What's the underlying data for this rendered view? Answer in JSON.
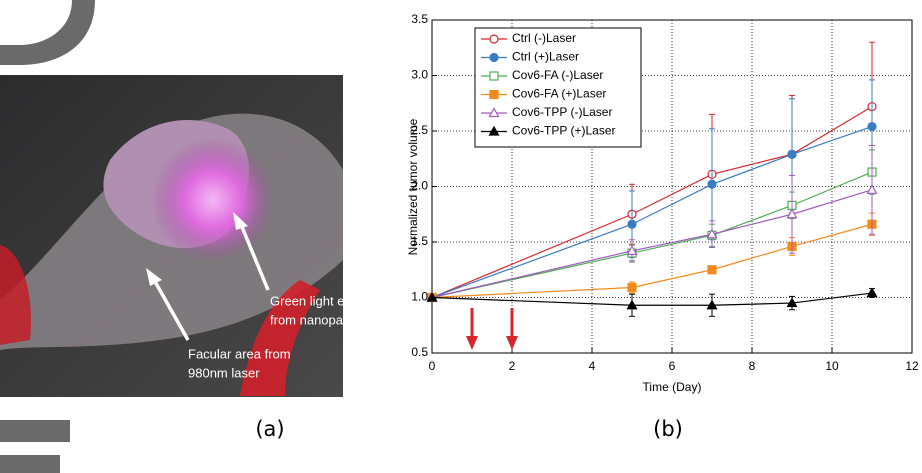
{
  "panel_labels": [
    "(a)",
    "(b)"
  ],
  "photo": {
    "annotations": [
      [
        "Green light emitted",
        "from nanoparticles"
      ],
      [
        "Facular area from",
        "980nm laser"
      ]
    ]
  },
  "chart_data": {
    "type": "line",
    "x_label": "Time (Day)",
    "y_label": "Normalized tumor volume",
    "x": [
      0,
      5,
      7,
      9,
      11
    ],
    "series": [
      {
        "name": "Ctrl (-)Laser",
        "color": "#d9262b",
        "marker": "circle",
        "filled": false,
        "values": [
          1.0,
          1.75,
          2.11,
          2.29,
          2.72
        ],
        "errors": [
          0,
          0.27,
          0.54,
          0.53,
          0.58
        ]
      },
      {
        "name": "Ctrl (+)Laser",
        "color": "#3a7cc4",
        "marker": "circle",
        "filled": true,
        "values": [
          1.0,
          1.66,
          2.02,
          2.29,
          2.54
        ],
        "errors": [
          0,
          0.3,
          0.5,
          0.5,
          0.42
        ]
      },
      {
        "name": "Cov6-FA (-)Laser",
        "color": "#4caf50",
        "marker": "square",
        "filled": false,
        "values": [
          1.0,
          1.4,
          1.56,
          1.83,
          2.13
        ],
        "errors": [
          0,
          0.07,
          0.1,
          0.12,
          0.2
        ]
      },
      {
        "name": "Cov6-FA (+)Laser",
        "color": "#f28a1c",
        "marker": "square",
        "filled": true,
        "values": [
          1.0,
          1.09,
          1.25,
          1.46,
          1.66
        ],
        "errors": [
          0,
          0.05,
          0.03,
          0.08,
          0.1
        ]
      },
      {
        "name": "Cov6-TPP (-)Laser",
        "color": "#a25bc4",
        "marker": "triangle",
        "filled": false,
        "values": [
          1.0,
          1.42,
          1.57,
          1.75,
          1.97
        ],
        "errors": [
          0,
          0.1,
          0.12,
          0.35,
          0.4
        ]
      },
      {
        "name": "Cov6-TPP (+)Laser",
        "color": "#000000",
        "marker": "triangle",
        "filled": true,
        "values": [
          1.0,
          0.93,
          0.93,
          0.95,
          1.04
        ],
        "errors": [
          0,
          0.1,
          0.1,
          0.06,
          0.04
        ]
      }
    ],
    "treatment_days": [
      1,
      2
    ],
    "treatment_color": "#d9262b",
    "xlim": [
      0,
      12
    ],
    "xticks": [
      0,
      2,
      4,
      6,
      8,
      10,
      12
    ],
    "ylim": [
      0.5,
      3.5
    ],
    "yticks": [
      0.5,
      {
        "value": 1,
        "label": "1.0"
      },
      1.5,
      {
        "value": 2,
        "label": "2.0"
      },
      2.5,
      {
        "value": 3,
        "label": "3.0"
      },
      3.5
    ],
    "grid": true,
    "legend": "upper left"
  }
}
